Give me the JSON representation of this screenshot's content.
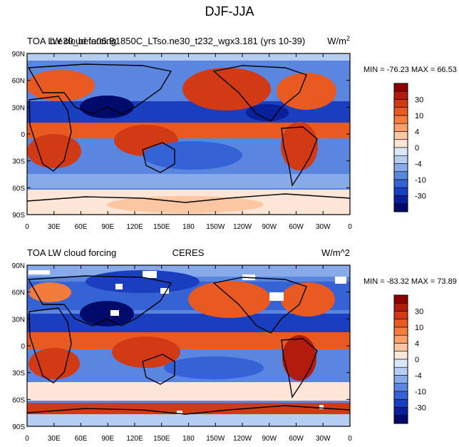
{
  "figure_title": "DJF-JJA",
  "chart_data": [
    {
      "type": "heatmap",
      "panel": "model",
      "title_left": "TOA LW cloud forcing",
      "title_center": "b.e30_beta06.B1850C_LTso.ne30_t232_wgx3.181 (yrs 10-39)",
      "units_base": "W/m",
      "units_sup": "2",
      "stats": "MIN = -76.23 MAX =  66.53",
      "x_ticks": [
        "0",
        "30E",
        "60E",
        "90E",
        "120E",
        "150E",
        "180",
        "150W",
        "120W",
        "90W",
        "60W",
        "30W",
        "0"
      ],
      "y_ticks": [
        "90N",
        "60N",
        "30N",
        "0",
        "30S",
        "60S",
        "90S"
      ],
      "xlim": [
        0,
        360
      ],
      "ylim": [
        -90,
        90
      ],
      "colorbar_labels": [
        "30",
        "10",
        "4",
        "0",
        "-4",
        "-10",
        "-30"
      ]
    },
    {
      "type": "heatmap",
      "panel": "obs",
      "title_left": "TOA LW cloud forcing",
      "title_center": "CERES",
      "units": "W/m^2",
      "stats": "MIN = -83.32 MAX =  73.89",
      "x_ticks": [
        "0",
        "30E",
        "60E",
        "90E",
        "120E",
        "150E",
        "180",
        "150W",
        "120W",
        "90W",
        "60W",
        "30W",
        "0"
      ],
      "y_ticks": [
        "90N",
        "60N",
        "30N",
        "0",
        "30S",
        "60S",
        "90S"
      ],
      "xlim": [
        0,
        360
      ],
      "ylim": [
        -90,
        90
      ],
      "colorbar_labels": [
        "30",
        "10",
        "4",
        "0",
        "-4",
        "-10",
        "-30"
      ]
    }
  ],
  "colors": {
    "scale": [
      "#8b0000",
      "#b31b0c",
      "#d23a16",
      "#e85a22",
      "#f37c3c",
      "#f9a06a",
      "#fbc6a2",
      "#fde6d8",
      "#dbe8f7",
      "#b4cdf0",
      "#86aaea",
      "#5a86e0",
      "#3562d5",
      "#1a3ec0",
      "#0a1f9a",
      "#000a6a"
    ],
    "white": "#ffffff"
  }
}
